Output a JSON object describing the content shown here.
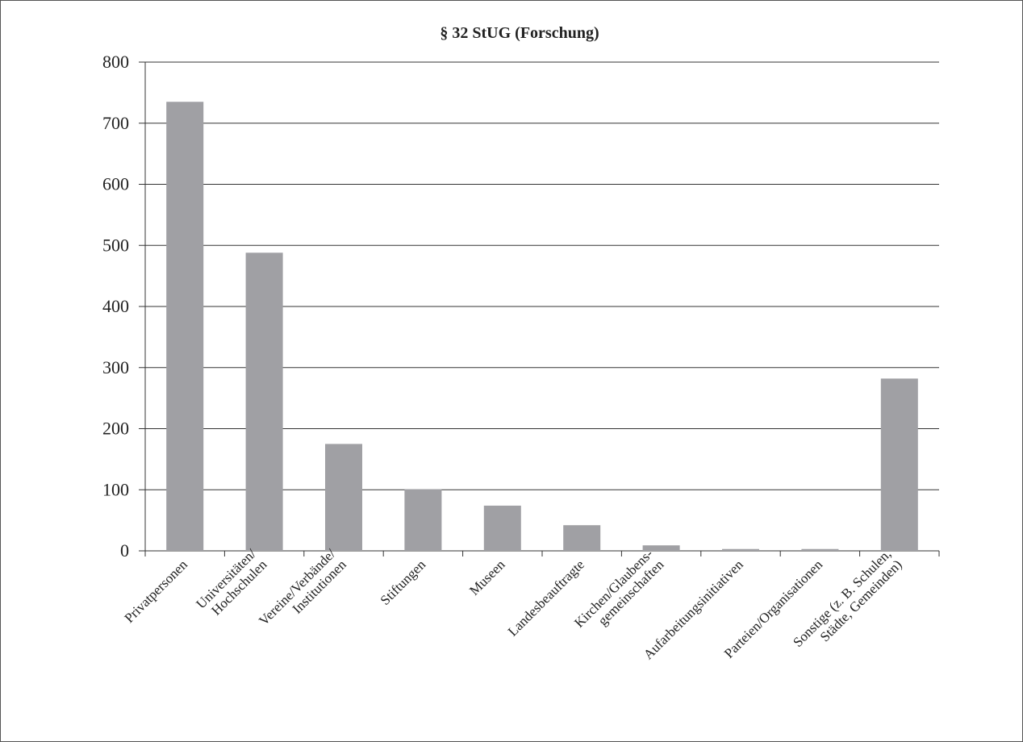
{
  "chart_data": {
    "type": "bar",
    "title": "§ 32 StUG (Forschung)",
    "xlabel": "",
    "ylabel": "",
    "ylim": [
      0,
      800
    ],
    "yticks": [
      "0",
      "100",
      "200",
      "300",
      "400",
      "500",
      "600",
      "700",
      "800"
    ],
    "grid": true,
    "categories": [
      [
        "Privatpersonen"
      ],
      [
        "Universitäten/",
        "Hochschulen"
      ],
      [
        "Vereine/Verbände/",
        "Institutionen"
      ],
      [
        "Stiftungen"
      ],
      [
        "Museen"
      ],
      [
        "Landesbeauftragte"
      ],
      [
        "Kirchen/Glaubens-",
        "gemeinschaften"
      ],
      [
        "Aufarbeitungsinitiativen"
      ],
      [
        "Parteien/Organisationen"
      ],
      [
        "Sonstige (z. B. Schulen,",
        "Städte, Gemeinden)"
      ]
    ],
    "values": [
      735,
      488,
      175,
      101,
      74,
      42,
      9,
      3,
      3,
      282
    ],
    "colors": {
      "bar": "#a0a0a4",
      "grid": "#333333",
      "text": "#222222"
    }
  }
}
